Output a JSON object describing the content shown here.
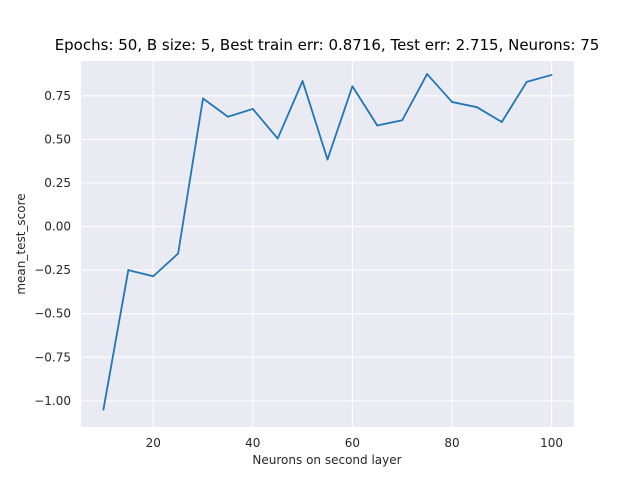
{
  "chart_data": {
    "type": "line",
    "title": "Epochs: 50, B size: 5, Best train err: 0.8716, Test err: 2.715, Neurons: 75",
    "xlabel": "Neurons on second layer",
    "ylabel": "mean_test_score",
    "xlim": [
      5.5,
      104.5
    ],
    "ylim": [
      -1.15,
      0.95
    ],
    "xticks": [
      20,
      40,
      60,
      80,
      100
    ],
    "yticks": [
      -1.0,
      -0.75,
      -0.5,
      -0.25,
      0.0,
      0.25,
      0.5,
      0.75
    ],
    "xtick_labels": [
      "20",
      "40",
      "60",
      "80",
      "100"
    ],
    "ytick_labels": [
      "−1.00",
      "−0.75",
      "−0.50",
      "−0.25",
      "0.00",
      "0.25",
      "0.50",
      "0.75"
    ],
    "grid": true,
    "background": "#eaeaf2",
    "series": [
      {
        "color": "#1f77b4",
        "x": [
          10,
          15,
          20,
          25,
          30,
          35,
          40,
          45,
          50,
          55,
          60,
          65,
          70,
          75,
          80,
          85,
          90,
          95,
          100
        ],
        "y": [
          -1.05,
          -0.25,
          -0.285,
          -0.155,
          0.735,
          0.63,
          0.675,
          0.505,
          0.835,
          0.385,
          0.805,
          0.58,
          0.61,
          0.875,
          0.715,
          0.685,
          0.6,
          0.83,
          0.87
        ]
      }
    ]
  }
}
